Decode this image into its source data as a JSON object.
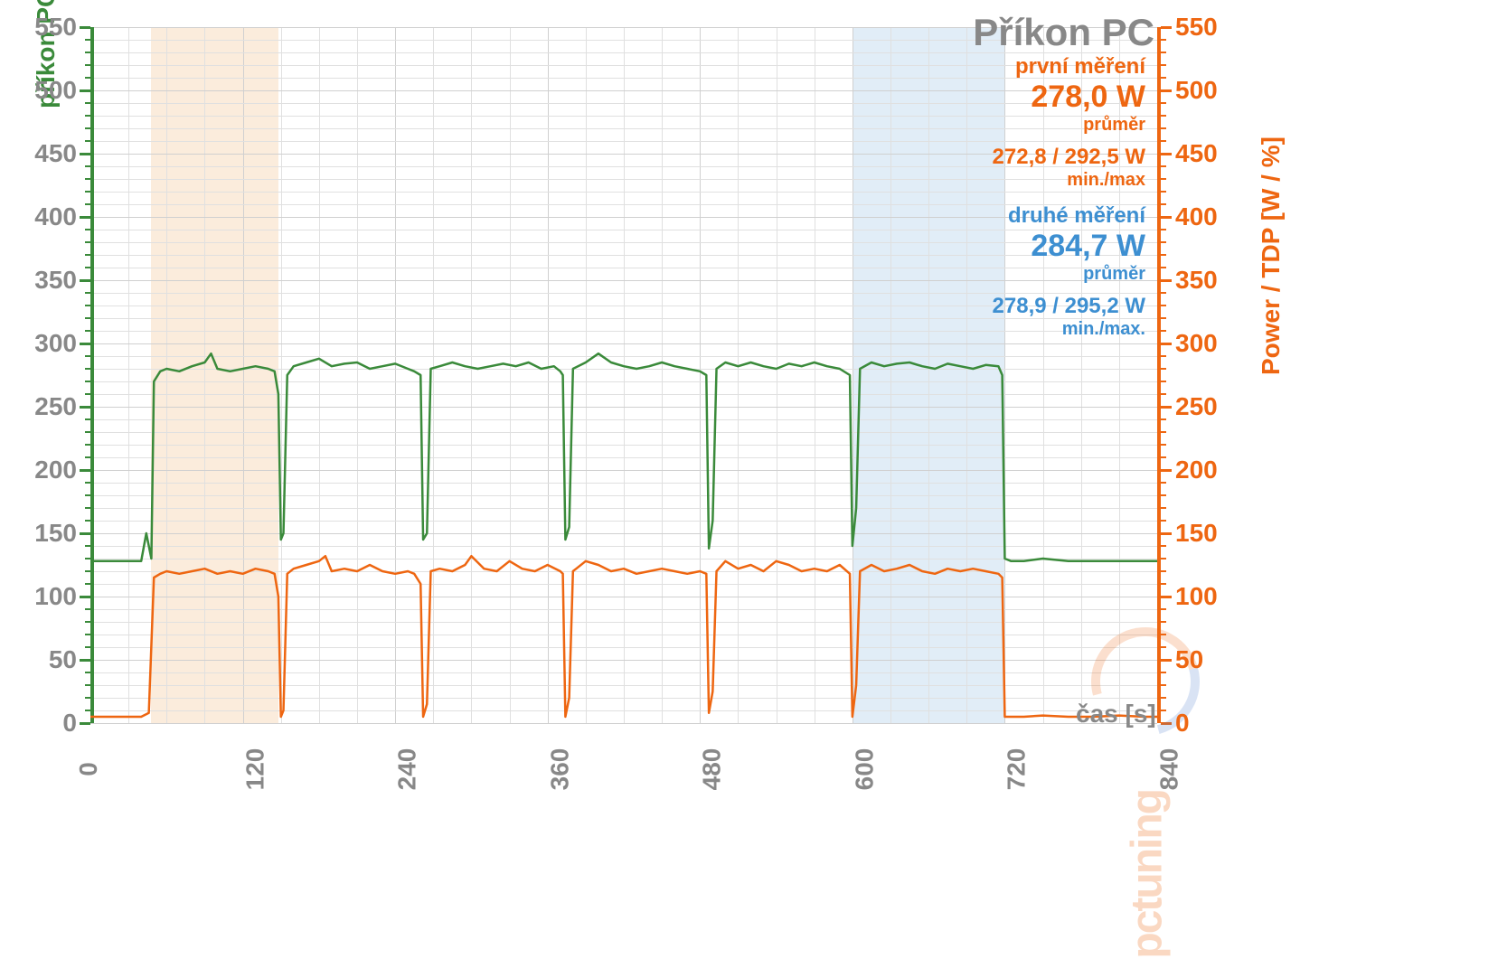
{
  "chart": {
    "type": "line",
    "title": "Příkon PC",
    "x_axis": {
      "label": "čas [s]",
      "min": 0,
      "max": 840,
      "major_tick": 120,
      "minor_tick": 30,
      "color": "#888888",
      "fontsize": 28
    },
    "y_axis_left": {
      "label": "příkon PC [W]",
      "min": 0,
      "max": 550,
      "major_tick": 50,
      "minor_tick": 10,
      "color": "#3a8a3a",
      "fontsize": 28
    },
    "y_axis_right": {
      "label": "Power / TDP [W / %]",
      "min": 0,
      "max": 550,
      "major_tick": 50,
      "minor_tick": 10,
      "color": "#ee6611",
      "fontsize": 28
    },
    "grid_color": "#e0e0e0",
    "background_color": "#ffffff",
    "highlight_bands": [
      {
        "x_start": 48,
        "x_end": 148,
        "color": "#f4c89a"
      },
      {
        "x_start": 600,
        "x_end": 720,
        "color": "#a8cce8"
      }
    ],
    "series": [
      {
        "name": "green",
        "axis": "left",
        "color": "#3a8a3a",
        "line_width": 2.5,
        "data": [
          [
            0,
            128
          ],
          [
            10,
            128
          ],
          [
            20,
            128
          ],
          [
            30,
            128
          ],
          [
            40,
            128
          ],
          [
            44,
            150
          ],
          [
            46,
            140
          ],
          [
            48,
            130
          ],
          [
            50,
            270
          ],
          [
            55,
            278
          ],
          [
            60,
            280
          ],
          [
            70,
            278
          ],
          [
            80,
            282
          ],
          [
            90,
            285
          ],
          [
            95,
            292
          ],
          [
            100,
            280
          ],
          [
            110,
            278
          ],
          [
            120,
            280
          ],
          [
            130,
            282
          ],
          [
            140,
            280
          ],
          [
            145,
            278
          ],
          [
            148,
            260
          ],
          [
            150,
            145
          ],
          [
            152,
            150
          ],
          [
            155,
            275
          ],
          [
            160,
            282
          ],
          [
            170,
            285
          ],
          [
            180,
            288
          ],
          [
            190,
            282
          ],
          [
            200,
            284
          ],
          [
            210,
            285
          ],
          [
            220,
            280
          ],
          [
            230,
            282
          ],
          [
            240,
            284
          ],
          [
            250,
            280
          ],
          [
            255,
            278
          ],
          [
            260,
            275
          ],
          [
            262,
            145
          ],
          [
            265,
            150
          ],
          [
            268,
            280
          ],
          [
            275,
            282
          ],
          [
            285,
            285
          ],
          [
            295,
            282
          ],
          [
            305,
            280
          ],
          [
            315,
            282
          ],
          [
            325,
            284
          ],
          [
            335,
            282
          ],
          [
            345,
            285
          ],
          [
            355,
            280
          ],
          [
            365,
            282
          ],
          [
            370,
            278
          ],
          [
            372,
            275
          ],
          [
            374,
            145
          ],
          [
            377,
            155
          ],
          [
            380,
            280
          ],
          [
            390,
            285
          ],
          [
            400,
            292
          ],
          [
            410,
            285
          ],
          [
            420,
            282
          ],
          [
            430,
            280
          ],
          [
            440,
            282
          ],
          [
            450,
            285
          ],
          [
            460,
            282
          ],
          [
            470,
            280
          ],
          [
            480,
            278
          ],
          [
            485,
            275
          ],
          [
            487,
            138
          ],
          [
            490,
            160
          ],
          [
            493,
            280
          ],
          [
            500,
            285
          ],
          [
            510,
            282
          ],
          [
            520,
            285
          ],
          [
            530,
            282
          ],
          [
            540,
            280
          ],
          [
            550,
            284
          ],
          [
            560,
            282
          ],
          [
            570,
            285
          ],
          [
            580,
            282
          ],
          [
            590,
            280
          ],
          [
            598,
            275
          ],
          [
            600,
            140
          ],
          [
            603,
            170
          ],
          [
            606,
            280
          ],
          [
            615,
            285
          ],
          [
            625,
            282
          ],
          [
            635,
            284
          ],
          [
            645,
            285
          ],
          [
            655,
            282
          ],
          [
            665,
            280
          ],
          [
            675,
            284
          ],
          [
            685,
            282
          ],
          [
            695,
            280
          ],
          [
            705,
            283
          ],
          [
            715,
            282
          ],
          [
            718,
            275
          ],
          [
            720,
            130
          ],
          [
            725,
            128
          ],
          [
            735,
            128
          ],
          [
            750,
            130
          ],
          [
            770,
            128
          ],
          [
            790,
            128
          ],
          [
            810,
            128
          ],
          [
            830,
            128
          ],
          [
            840,
            128
          ]
        ]
      },
      {
        "name": "orange",
        "axis": "right",
        "color": "#ee6611",
        "line_width": 2.5,
        "data": [
          [
            0,
            5
          ],
          [
            10,
            5
          ],
          [
            20,
            5
          ],
          [
            30,
            5
          ],
          [
            40,
            5
          ],
          [
            46,
            8
          ],
          [
            50,
            115
          ],
          [
            55,
            118
          ],
          [
            60,
            120
          ],
          [
            70,
            118
          ],
          [
            80,
            120
          ],
          [
            90,
            122
          ],
          [
            100,
            118
          ],
          [
            110,
            120
          ],
          [
            120,
            118
          ],
          [
            130,
            122
          ],
          [
            140,
            120
          ],
          [
            145,
            118
          ],
          [
            148,
            100
          ],
          [
            150,
            5
          ],
          [
            152,
            10
          ],
          [
            155,
            118
          ],
          [
            160,
            122
          ],
          [
            170,
            125
          ],
          [
            180,
            128
          ],
          [
            185,
            132
          ],
          [
            190,
            120
          ],
          [
            200,
            122
          ],
          [
            210,
            120
          ],
          [
            220,
            125
          ],
          [
            230,
            120
          ],
          [
            240,
            118
          ],
          [
            250,
            120
          ],
          [
            255,
            118
          ],
          [
            260,
            110
          ],
          [
            262,
            5
          ],
          [
            265,
            15
          ],
          [
            268,
            120
          ],
          [
            275,
            122
          ],
          [
            285,
            120
          ],
          [
            295,
            125
          ],
          [
            300,
            132
          ],
          [
            310,
            122
          ],
          [
            320,
            120
          ],
          [
            330,
            128
          ],
          [
            340,
            122
          ],
          [
            350,
            120
          ],
          [
            360,
            125
          ],
          [
            370,
            120
          ],
          [
            372,
            118
          ],
          [
            374,
            5
          ],
          [
            377,
            20
          ],
          [
            380,
            120
          ],
          [
            390,
            128
          ],
          [
            400,
            125
          ],
          [
            410,
            120
          ],
          [
            420,
            122
          ],
          [
            430,
            118
          ],
          [
            440,
            120
          ],
          [
            450,
            122
          ],
          [
            460,
            120
          ],
          [
            470,
            118
          ],
          [
            480,
            120
          ],
          [
            485,
            118
          ],
          [
            487,
            8
          ],
          [
            490,
            25
          ],
          [
            493,
            120
          ],
          [
            500,
            128
          ],
          [
            510,
            122
          ],
          [
            520,
            125
          ],
          [
            530,
            120
          ],
          [
            540,
            128
          ],
          [
            550,
            125
          ],
          [
            560,
            120
          ],
          [
            570,
            122
          ],
          [
            580,
            120
          ],
          [
            590,
            125
          ],
          [
            598,
            118
          ],
          [
            600,
            5
          ],
          [
            603,
            30
          ],
          [
            606,
            120
          ],
          [
            615,
            125
          ],
          [
            625,
            120
          ],
          [
            635,
            122
          ],
          [
            645,
            125
          ],
          [
            655,
            120
          ],
          [
            665,
            118
          ],
          [
            675,
            122
          ],
          [
            685,
            120
          ],
          [
            695,
            122
          ],
          [
            705,
            120
          ],
          [
            715,
            118
          ],
          [
            718,
            115
          ],
          [
            720,
            5
          ],
          [
            725,
            5
          ],
          [
            735,
            5
          ],
          [
            750,
            6
          ],
          [
            770,
            5
          ],
          [
            790,
            5
          ],
          [
            810,
            6
          ],
          [
            830,
            5
          ],
          [
            840,
            5
          ]
        ]
      }
    ],
    "annotations": {
      "first": {
        "label": "první měření",
        "value": "278,0 W",
        "sub": "průměr",
        "minmax": "272,8 / 292,5 W",
        "minmax_sub": "min./max",
        "color": "#ee6611"
      },
      "second": {
        "label": "druhé měření",
        "value": "284,7 W",
        "sub": "průměr",
        "minmax": "278,9 / 295,2 W",
        "minmax_sub": "min./max.",
        "color": "#3d8fd1"
      }
    },
    "watermark": "pctuning",
    "y_ticks": [
      0,
      50,
      100,
      150,
      200,
      250,
      300,
      350,
      400,
      450,
      500,
      550
    ],
    "x_ticks": [
      0,
      120,
      240,
      360,
      480,
      600,
      720,
      840
    ]
  }
}
